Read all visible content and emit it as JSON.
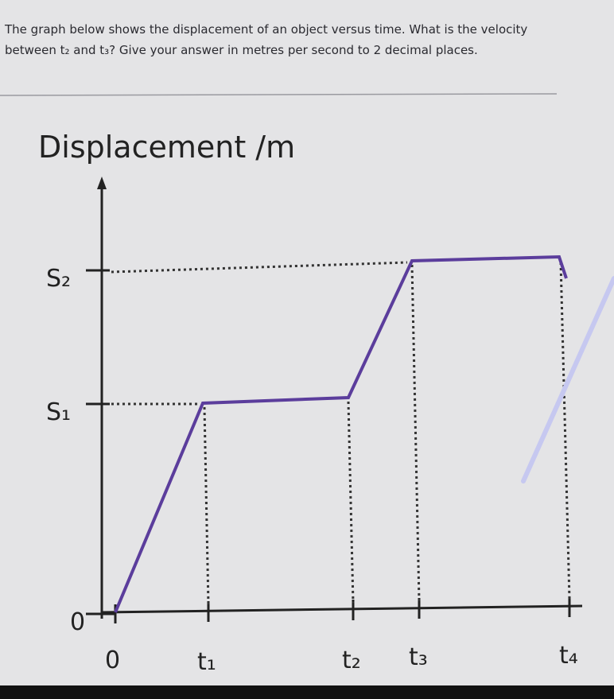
{
  "question": {
    "text": "The graph below shows the displacement of an object versus time. What is the velocity between t₂ and t₃? Give your answer in metres per second to 2 decimal places."
  },
  "graph": {
    "y_axis_title": "Displacement /m",
    "y_labels": [
      "S₂",
      "S₁",
      "0"
    ],
    "x_labels": [
      "0",
      "t₁",
      "t₂",
      "t₃",
      "t₄"
    ]
  }
}
